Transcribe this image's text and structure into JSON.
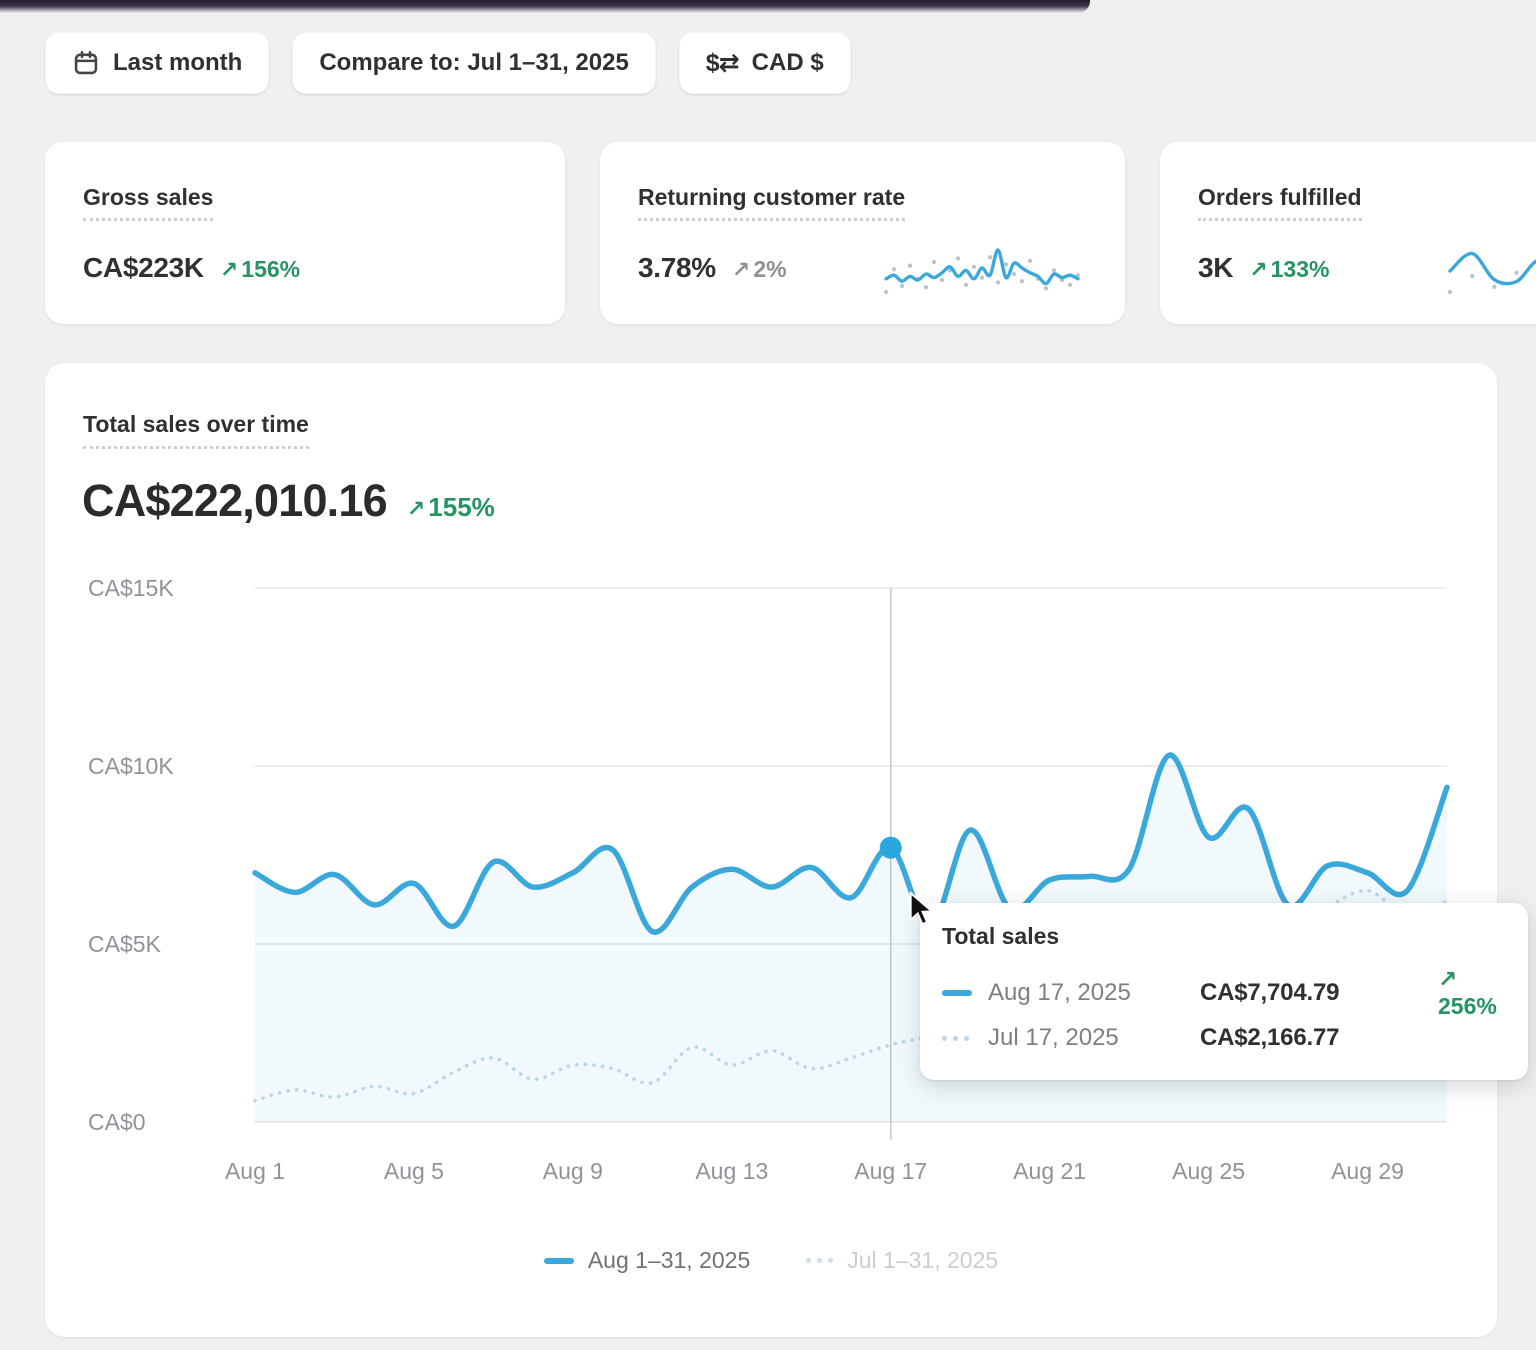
{
  "toolbar": {
    "date_range_label": "Last month",
    "compare_label": "Compare to: Jul 1–31, 2025",
    "currency_label": "CAD $"
  },
  "icons": {
    "trend_up": "↗",
    "currency_exchange": "$⇄"
  },
  "metric_cards": [
    {
      "title": "Gross sales",
      "value": "CA$223K",
      "delta": "156%",
      "delta_color": "green"
    },
    {
      "title": "Returning customer rate",
      "value": "3.78%",
      "delta": "2%",
      "delta_color": "gray",
      "sparkline": {
        "main": [
          3.1,
          3.4,
          2.9,
          3.3,
          3.0,
          3.5,
          3.2,
          3.6,
          4.1,
          3.3,
          3.8,
          3.1,
          4.0,
          3.4,
          5.5,
          3.2,
          4.4,
          4.0,
          3.6,
          3.3,
          2.7,
          3.5,
          3.2,
          3.4,
          3.1
        ],
        "compare": [
          2.0,
          3.9,
          2.5,
          4.2,
          3.1,
          2.4,
          4.5,
          3.0,
          3.8,
          4.8,
          2.6,
          4.1,
          3.2,
          4.9,
          2.8,
          4.3,
          3.5,
          2.9,
          4.6,
          3.1,
          2.3,
          3.8,
          3.0,
          2.6,
          3.4
        ]
      }
    },
    {
      "title": "Orders fulfilled",
      "value": "3K",
      "delta": "133%",
      "delta_color": "green",
      "sparkline": {
        "main": [
          3.4,
          4.4,
          2.9,
          2.8,
          4.0,
          2.9,
          3.0,
          4.3,
          3.6,
          4.6,
          3.1
        ],
        "compare": [
          2.2,
          3.1,
          2.5,
          3.3,
          2.7,
          3.5,
          2.6,
          3.2,
          2.8,
          3.0,
          2.4
        ]
      }
    }
  ],
  "chart_card": {
    "title": "Total sales over time",
    "value": "CA$222,010.16",
    "delta": "155%"
  },
  "tooltip": {
    "title": "Total sales",
    "rows": [
      {
        "label": "Aug 17, 2025",
        "value": "CA$7,704.79",
        "delta": "256%",
        "swatch": "solid"
      },
      {
        "label": "Jul 17, 2025",
        "value": "CA$2,166.77",
        "delta": "",
        "swatch": "dotted"
      }
    ]
  },
  "legend": [
    {
      "label": "Aug 1–31, 2025",
      "swatch": "solid"
    },
    {
      "label": "Jul 1–31, 2025",
      "swatch": "dotted"
    }
  ],
  "chart_data": {
    "type": "line",
    "title": "Total sales over time",
    "x_axis": {
      "tick_days": [
        1,
        5,
        9,
        13,
        17,
        21,
        25,
        29
      ],
      "tick_labels": [
        "Aug 1",
        "Aug 5",
        "Aug 9",
        "Aug 13",
        "Aug 17",
        "Aug 21",
        "Aug 25",
        "Aug 29"
      ]
    },
    "y_axis": {
      "tick_values": [
        15000,
        10000,
        5000,
        0
      ],
      "tick_labels": [
        "CA$15K",
        "CA$10K",
        "CA$5K",
        "CA$0"
      ],
      "range": [
        0,
        15000
      ]
    },
    "grid": "horizontal",
    "legend_position": "bottom-center",
    "series": [
      {
        "name": "Aug 1–31, 2025",
        "style": "solid",
        "color": "#3BA8DC",
        "values": [
          7000,
          6450,
          6950,
          6100,
          6700,
          5500,
          7300,
          6600,
          7000,
          7650,
          5350,
          6600,
          7100,
          6600,
          7150,
          6300,
          7704.79,
          5500,
          8200,
          6000,
          6800,
          6900,
          7100,
          10300,
          8000,
          8800,
          6100,
          7200,
          7000,
          6500,
          9400
        ]
      },
      {
        "name": "Jul 1–31, 2025",
        "style": "dotted",
        "color": "#B7D7E8",
        "values": [
          600,
          900,
          700,
          1000,
          800,
          1400,
          1800,
          1200,
          1600,
          1500,
          1100,
          2100,
          1600,
          2000,
          1500,
          1800,
          2166.77,
          2400,
          2600,
          2800,
          3000,
          3200,
          3400,
          3600,
          3900,
          4400,
          5000,
          6000,
          6500,
          5800,
          6200
        ]
      }
    ],
    "highlight": {
      "series": "Aug 1–31, 2025",
      "day": 17,
      "value": 7704.79,
      "crosshair": true
    }
  },
  "colors": {
    "accent_blue": "#3BA8DC",
    "highlight_dot": "#2BA7E0",
    "compare_blue": "#B7D7E8",
    "area_fill": "#3BA8DC",
    "green": "#259462",
    "gray_delta": "#909090",
    "grid": "#e7e7e7",
    "crosshair": "#c9c9c9",
    "page_bg": "#F0F0F0"
  }
}
